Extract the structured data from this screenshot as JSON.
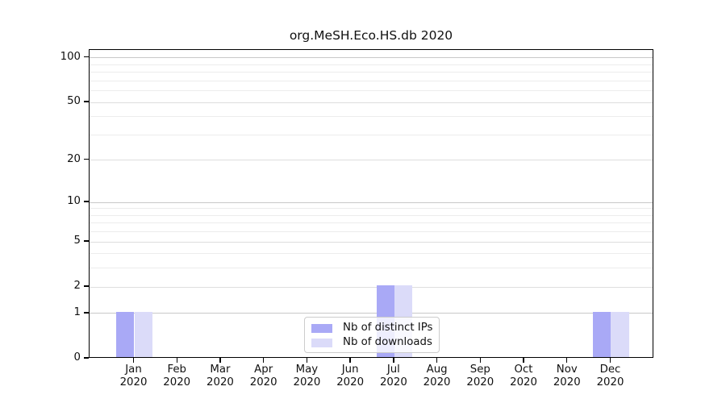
{
  "title": "org.MeSH.Eco.HS.db 2020",
  "legend": {
    "items": [
      {
        "label": "Nb of distinct IPs"
      },
      {
        "label": "Nb of downloads"
      }
    ]
  },
  "colors": {
    "distinct_ips_bar": "#a9a9f6",
    "downloads_bar": "#dbdbf9",
    "decade_gridline": "#c8c8c8",
    "major_gridline": "#dedede",
    "minor_gridline": "#ececec",
    "axis": "#000000",
    "legend_border": "#cccccc"
  },
  "chart_data": {
    "type": "bar",
    "title": "org.MeSH.Eco.HS.db 2020",
    "x_tick_months": [
      "Jan",
      "Feb",
      "Mar",
      "Apr",
      "May",
      "Jun",
      "Jul",
      "Aug",
      "Sep",
      "Oct",
      "Nov",
      "Dec"
    ],
    "x_tick_year": "2020",
    "categories": [
      "Jan 2020",
      "Feb 2020",
      "Mar 2020",
      "Apr 2020",
      "May 2020",
      "Jun 2020",
      "Jul 2020",
      "Aug 2020",
      "Sep 2020",
      "Oct 2020",
      "Nov 2020",
      "Dec 2020"
    ],
    "series": [
      {
        "name": "Nb of distinct IPs",
        "color": "#a9a9f6",
        "values": [
          1,
          0,
          0,
          0,
          0,
          0,
          2,
          0,
          0,
          0,
          0,
          1
        ]
      },
      {
        "name": "Nb of downloads",
        "color": "#dbdbf9",
        "values": [
          1,
          0,
          0,
          0,
          0,
          0,
          2,
          0,
          0,
          0,
          0,
          1
        ]
      }
    ],
    "y_scale": "log1p",
    "ylim": [
      0,
      113
    ],
    "y_tick_labels": [
      100,
      50,
      20,
      10,
      5,
      2,
      1,
      0
    ],
    "y_decade_gridlines": [
      1,
      10,
      100
    ],
    "y_major_gridlines": [
      2,
      5,
      20,
      50
    ],
    "y_minor_gridlines": [
      3,
      4,
      6,
      7,
      8,
      9,
      30,
      40,
      60,
      70,
      80,
      90
    ],
    "grid": "horizontal",
    "legend_position": "lower center inside"
  }
}
